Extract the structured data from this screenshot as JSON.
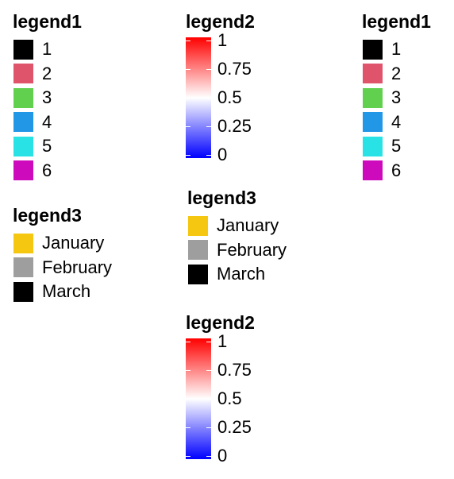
{
  "chart_data": [
    {
      "type": "legend",
      "kind": "discrete",
      "title": "legend1",
      "entries": [
        {
          "label": "1",
          "color": "#000000"
        },
        {
          "label": "2",
          "color": "#DF536B"
        },
        {
          "label": "3",
          "color": "#61D04F"
        },
        {
          "label": "4",
          "color": "#2297E6"
        },
        {
          "label": "5",
          "color": "#28E2E5"
        },
        {
          "label": "6",
          "color": "#CD0BBC"
        }
      ]
    },
    {
      "type": "legend",
      "kind": "discrete",
      "title": "legend3",
      "entries": [
        {
          "label": "January",
          "color": "#F5C710"
        },
        {
          "label": "February",
          "color": "#9E9E9E"
        },
        {
          "label": "March",
          "color": "#000000"
        }
      ]
    },
    {
      "type": "legend",
      "kind": "colorbar",
      "title": "legend2",
      "range": [
        0,
        1
      ],
      "gradient": [
        "#0000FF",
        "#FFFFFF",
        "#FF0000"
      ],
      "ticks": [
        {
          "value": 0,
          "label": "0"
        },
        {
          "value": 0.25,
          "label": "0.25"
        },
        {
          "value": 0.5,
          "label": "0.5"
        },
        {
          "value": 0.75,
          "label": "0.75"
        },
        {
          "value": 1,
          "label": "1"
        }
      ]
    },
    {
      "type": "legend",
      "kind": "discrete",
      "title": "legend3",
      "entries": [
        {
          "label": "January",
          "color": "#F5C710"
        },
        {
          "label": "February",
          "color": "#9E9E9E"
        },
        {
          "label": "March",
          "color": "#000000"
        }
      ]
    },
    {
      "type": "legend",
      "kind": "colorbar",
      "title": "legend2",
      "range": [
        0,
        1
      ],
      "gradient": [
        "#0000FF",
        "#FFFFFF",
        "#FF0000"
      ],
      "ticks": [
        {
          "value": 0,
          "label": "0"
        },
        {
          "value": 0.25,
          "label": "0.25"
        },
        {
          "value": 0.5,
          "label": "0.5"
        },
        {
          "value": 0.75,
          "label": "0.75"
        },
        {
          "value": 1,
          "label": "1"
        }
      ]
    },
    {
      "type": "legend",
      "kind": "discrete",
      "title": "legend1",
      "entries": [
        {
          "label": "1",
          "color": "#000000"
        },
        {
          "label": "2",
          "color": "#DF536B"
        },
        {
          "label": "3",
          "color": "#61D04F"
        },
        {
          "label": "4",
          "color": "#2297E6"
        },
        {
          "label": "5",
          "color": "#28E2E5"
        },
        {
          "label": "6",
          "color": "#CD0BBC"
        }
      ]
    }
  ]
}
